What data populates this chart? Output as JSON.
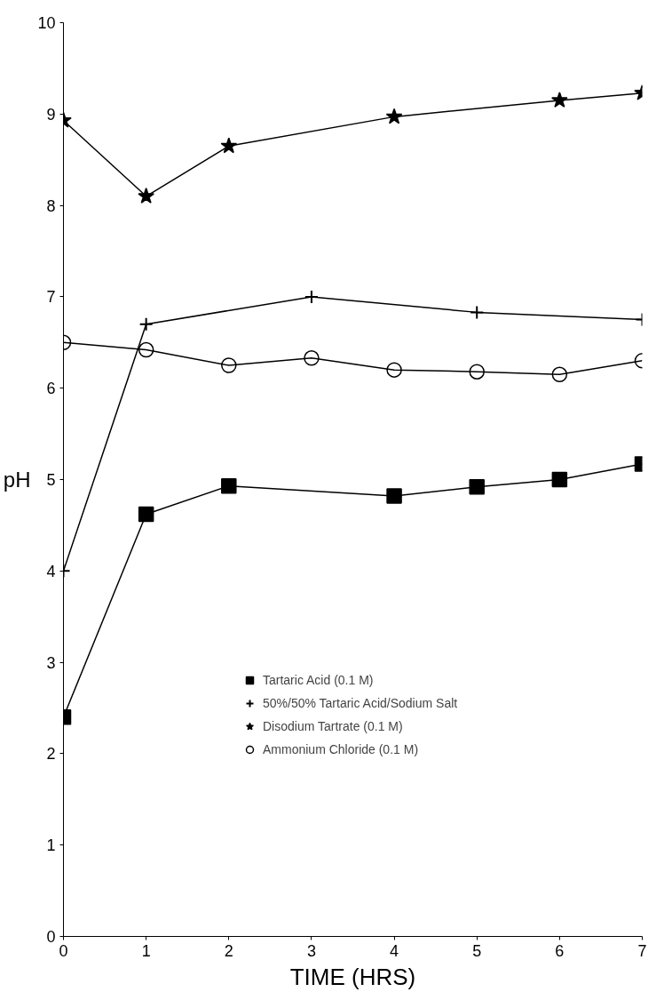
{
  "chart_data": {
    "type": "line",
    "xlabel": "TIME (HRS)",
    "ylabel": "pH",
    "xlim": [
      0,
      7
    ],
    "ylim": [
      0,
      10
    ],
    "xticks": [
      0,
      1,
      2,
      3,
      4,
      5,
      6,
      7
    ],
    "yticks": [
      0,
      1,
      2,
      3,
      4,
      5,
      6,
      7,
      8,
      9,
      10
    ],
    "grid": false,
    "legend": "bottom",
    "line_style": "solid",
    "series": [
      {
        "name": "Tartaric Acid (0.1 M)",
        "color": "#000000",
        "marker": "square",
        "x": [
          0,
          1,
          2,
          4,
          5,
          6,
          7
        ],
        "values": [
          2.4,
          4.62,
          4.93,
          4.82,
          4.92,
          5.0,
          5.17
        ]
      },
      {
        "name": "50%/50% Tartaric Acid/Sodium Salt",
        "color": "#000000",
        "marker": "cross",
        "x": [
          0,
          1,
          3,
          5,
          7
        ],
        "values": [
          4.0,
          6.7,
          7.0,
          6.83,
          6.75
        ]
      },
      {
        "name": "Disodium Tartrate (0.1 M)",
        "color": "#000000",
        "marker": "star",
        "x": [
          0,
          1,
          2,
          4,
          6,
          7
        ],
        "values": [
          8.93,
          8.1,
          8.65,
          8.97,
          9.15,
          9.23
        ]
      },
      {
        "name": "Ammonium Chloride (0.1 M)",
        "color": "#000000",
        "marker": "circle",
        "x": [
          0,
          1,
          2,
          3,
          4,
          5,
          6,
          7
        ],
        "values": [
          6.5,
          6.42,
          6.25,
          6.33,
          6.2,
          6.18,
          6.15,
          6.3
        ]
      }
    ]
  }
}
